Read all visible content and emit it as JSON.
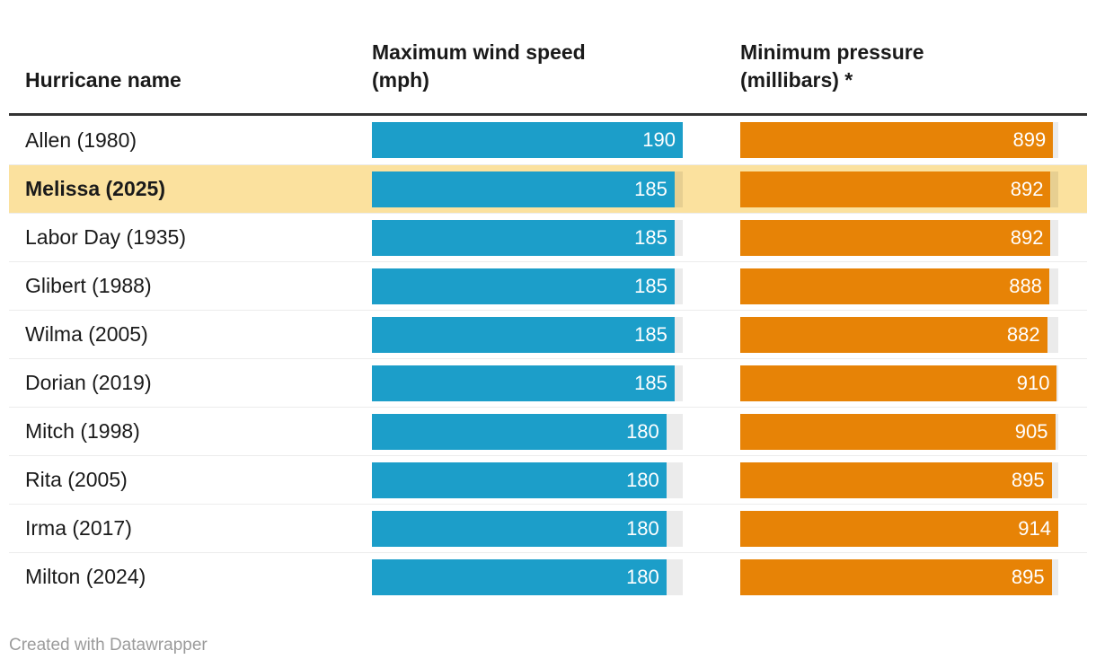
{
  "header": {
    "col1": "Hurricane name",
    "col2_line1": "Maximum wind speed",
    "col2_line2": "(mph)",
    "col3_line1": "Minimum pressure",
    "col3_line2": "(millibars) *"
  },
  "footer": {
    "credit": "Created with Datawrapper"
  },
  "colors": {
    "wind-bar": "#1C9EC9",
    "pressure-bar": "#E78306",
    "highlight": "#FBE19E",
    "rule": "#333333",
    "separator": "#ECECEC",
    "text": "#1A1A1A",
    "muted": "#9B9B9B"
  },
  "chart_data": {
    "type": "table",
    "columns": [
      "Hurricane name",
      "Maximum wind speed (mph)",
      "Minimum pressure (millibars) *"
    ],
    "wind_axis_max": 190,
    "pressure_axis_max": 914,
    "rows": [
      {
        "name": "Allen (1980)",
        "wind": 190,
        "pressure": 899,
        "highlight": false
      },
      {
        "name": "Melissa (2025)",
        "wind": 185,
        "pressure": 892,
        "highlight": true
      },
      {
        "name": "Labor Day (1935)",
        "wind": 185,
        "pressure": 892,
        "highlight": false
      },
      {
        "name": "Glibert (1988)",
        "wind": 185,
        "pressure": 888,
        "highlight": false
      },
      {
        "name": "Wilma (2005)",
        "wind": 185,
        "pressure": 882,
        "highlight": false
      },
      {
        "name": "Dorian (2019)",
        "wind": 185,
        "pressure": 910,
        "highlight": false
      },
      {
        "name": "Mitch (1998)",
        "wind": 180,
        "pressure": 905,
        "highlight": false
      },
      {
        "name": "Rita (2005)",
        "wind": 180,
        "pressure": 895,
        "highlight": false
      },
      {
        "name": "Irma (2017)",
        "wind": 180,
        "pressure": 914,
        "highlight": false
      },
      {
        "name": "Milton (2024)",
        "wind": 180,
        "pressure": 895,
        "highlight": false
      }
    ]
  }
}
